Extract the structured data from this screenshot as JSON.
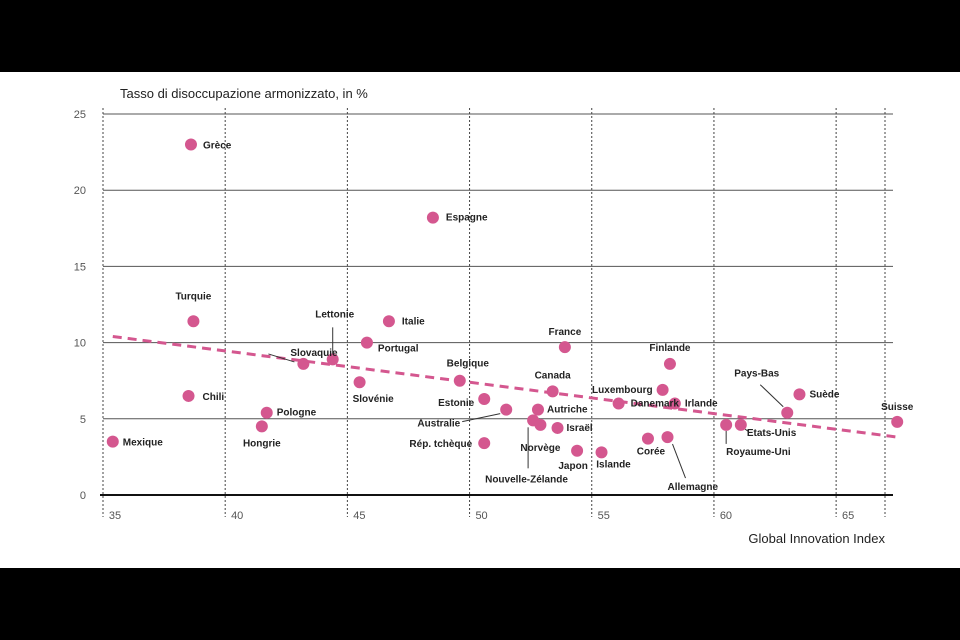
{
  "chart_data": {
    "type": "scatter",
    "ylabel": "Tasso di disoccupazione armonizzato, in %",
    "xlabel": "Global Innovation Index",
    "xlim": [
      35,
      67
    ],
    "ylim": [
      0,
      25
    ],
    "x_ticks": [
      35,
      40,
      45,
      50,
      55,
      60,
      65
    ],
    "y_ticks": [
      0,
      5,
      10,
      15,
      20,
      25
    ],
    "grid": {
      "horizontal": true,
      "vertical": true
    },
    "point_color": "#d4578f",
    "trend_color": "#d4578f",
    "points": [
      {
        "name": "Grèce",
        "x": 38.6,
        "y": 23.0
      },
      {
        "name": "Espagne",
        "x": 48.5,
        "y": 18.2
      },
      {
        "name": "Turquie",
        "x": 38.7,
        "y": 11.4
      },
      {
        "name": "Italie",
        "x": 46.7,
        "y": 11.4
      },
      {
        "name": "Lettonie",
        "x": 44.4,
        "y": 8.9
      },
      {
        "name": "Portugal",
        "x": 45.8,
        "y": 10.0
      },
      {
        "name": "Slovaquie",
        "x": 43.2,
        "y": 8.6
      },
      {
        "name": "Slovénie",
        "x": 45.5,
        "y": 7.4
      },
      {
        "name": "France",
        "x": 53.9,
        "y": 9.7
      },
      {
        "name": "Finlande",
        "x": 58.2,
        "y": 8.6
      },
      {
        "name": "Belgique",
        "x": 49.6,
        "y": 7.5
      },
      {
        "name": "Estonie",
        "x": 50.6,
        "y": 6.3
      },
      {
        "name": "Canada",
        "x": 53.4,
        "y": 6.8
      },
      {
        "name": "Luxembourg",
        "x": 57.9,
        "y": 6.9
      },
      {
        "name": "Irlande",
        "x": 58.4,
        "y": 6.0
      },
      {
        "name": "Danemark",
        "x": 56.1,
        "y": 6.0
      },
      {
        "name": "Pays-Bas",
        "x": 63.0,
        "y": 5.4
      },
      {
        "name": "Suède",
        "x": 63.5,
        "y": 6.6
      },
      {
        "name": "Suisse",
        "x": 67.5,
        "y": 4.8
      },
      {
        "name": "Chili",
        "x": 38.5,
        "y": 6.5
      },
      {
        "name": "Pologne",
        "x": 41.7,
        "y": 5.4
      },
      {
        "name": "Hongrie",
        "x": 41.5,
        "y": 4.5
      },
      {
        "name": "Mexique",
        "x": 35.4,
        "y": 3.5
      },
      {
        "name": "Australie",
        "x": 51.5,
        "y": 5.6
      },
      {
        "name": "Autriche",
        "x": 52.8,
        "y": 5.6
      },
      {
        "name": "Nouvelle-Zélande",
        "x": 52.6,
        "y": 4.9
      },
      {
        "name": "Norvège",
        "x": 52.9,
        "y": 4.6
      },
      {
        "name": "Israël",
        "x": 53.6,
        "y": 4.4
      },
      {
        "name": "Rép. tchèque",
        "x": 50.6,
        "y": 3.4
      },
      {
        "name": "Japon",
        "x": 54.4,
        "y": 2.9
      },
      {
        "name": "Islande",
        "x": 55.4,
        "y": 2.8
      },
      {
        "name": "Corée",
        "x": 57.3,
        "y": 3.7
      },
      {
        "name": "Allemagne",
        "x": 58.1,
        "y": 3.8
      },
      {
        "name": "Etats-Unis",
        "x": 61.1,
        "y": 4.6
      },
      {
        "name": "Royaume-Uni",
        "x": 60.5,
        "y": 4.6
      }
    ],
    "trendline": {
      "x": [
        35.4,
        67.5
      ],
      "y": [
        10.4,
        3.8
      ]
    }
  }
}
